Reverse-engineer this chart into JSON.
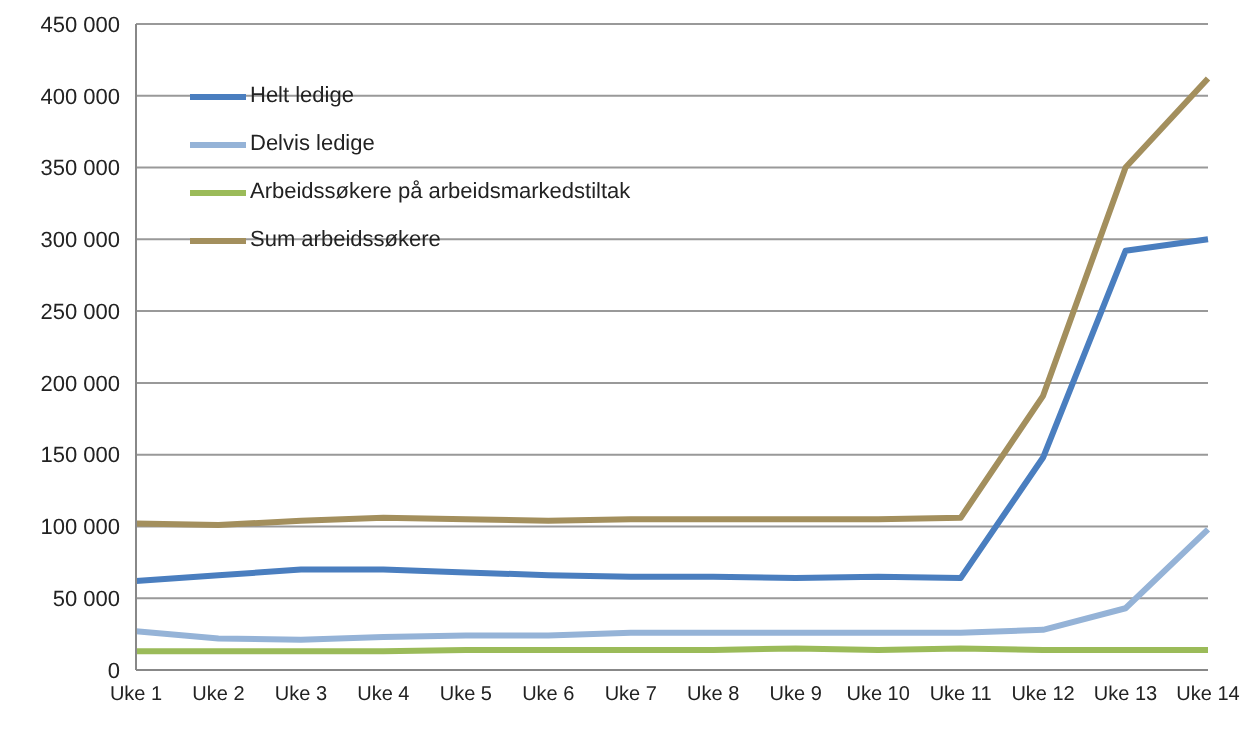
{
  "chart_data": {
    "type": "line",
    "categories": [
      "Uke 1",
      "Uke 2",
      "Uke 3",
      "Uke 4",
      "Uke 5",
      "Uke 6",
      "Uke 7",
      "Uke 8",
      "Uke 9",
      "Uke 10",
      "Uke 11",
      "Uke 12",
      "Uke 13",
      "Uke 14"
    ],
    "series": [
      {
        "name": "Helt ledige",
        "color": "#4a7ebf",
        "values": [
          62000,
          66000,
          70000,
          70000,
          68000,
          66000,
          65000,
          65000,
          64000,
          65000,
          64000,
          148000,
          292000,
          300000
        ]
      },
      {
        "name": "Delvis ledige",
        "color": "#95b3d7",
        "values": [
          27000,
          22000,
          21000,
          23000,
          24000,
          24000,
          26000,
          26000,
          26000,
          26000,
          26000,
          28000,
          43000,
          98000
        ]
      },
      {
        "name": "Arbeidssøkere på arbeidsmarkedstiltak",
        "color": "#9bbb59",
        "values": [
          13000,
          13000,
          13000,
          13000,
          14000,
          14000,
          14000,
          14000,
          15000,
          14000,
          15000,
          14000,
          14000,
          14000
        ]
      },
      {
        "name": "Sum arbeidssøkere",
        "color": "#a38f5d",
        "values": [
          102000,
          101000,
          104000,
          106000,
          105000,
          104000,
          105000,
          105000,
          105000,
          105000,
          106000,
          191000,
          350000,
          412000
        ]
      }
    ],
    "ylim": [
      0,
      450000
    ],
    "yticks": [
      {
        "value": 0,
        "label": "0"
      },
      {
        "value": 50000,
        "label": "50 000"
      },
      {
        "value": 100000,
        "label": "100 000"
      },
      {
        "value": 150000,
        "label": "150 000"
      },
      {
        "value": 200000,
        "label": "200 000"
      },
      {
        "value": 250000,
        "label": "250 000"
      },
      {
        "value": 300000,
        "label": "300 000"
      },
      {
        "value": 350000,
        "label": "350 000"
      },
      {
        "value": 400000,
        "label": "400 000"
      },
      {
        "value": 450000,
        "label": "450 000"
      }
    ],
    "grid": "y",
    "legend": "top left",
    "marker": "none",
    "line_style": "solid"
  }
}
